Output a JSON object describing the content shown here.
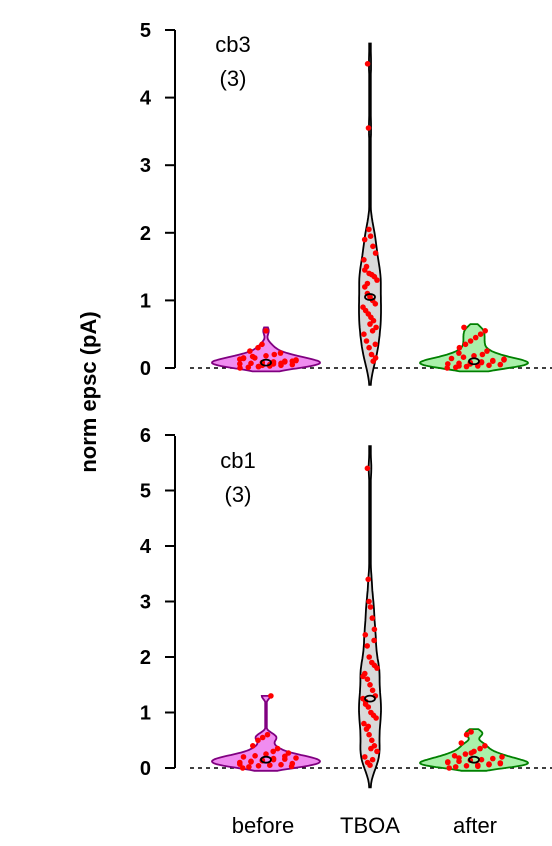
{
  "chart_data": {
    "ylabel": "norm epsc (pA)",
    "categories": [
      "before",
      "TBOA",
      "after"
    ],
    "colors": {
      "before": "#f08cf0",
      "TBOA": "#d9d9d9",
      "after": "#aaf0aa",
      "before_edge": "#800080",
      "TBOA_edge": "#000000",
      "after_edge": "#008000",
      "points": "#ff0000",
      "median_marker": "#000000"
    },
    "panels": [
      {
        "type": "violin",
        "annotation_line1": "cb3",
        "annotation_line2": "(3)",
        "ylim": [
          -0.25,
          5
        ],
        "yticks": [
          "0",
          "1",
          "2",
          "3",
          "4",
          "5"
        ],
        "zero_line": "dashed",
        "violins": [
          {
            "category": "before",
            "min": -0.05,
            "max": 0.6,
            "median": 0.08,
            "points": [
              0.0,
              0.01,
              0.02,
              0.03,
              0.04,
              0.05,
              0.06,
              0.07,
              0.08,
              0.09,
              0.1,
              0.12,
              0.14,
              0.15,
              0.18,
              0.2,
              0.22,
              0.25,
              0.3,
              0.02,
              0.05,
              0.07,
              0.1,
              0.13,
              0.17,
              0.04,
              0.06,
              0.09,
              0.11,
              0.15,
              0.35,
              0.55
            ]
          },
          {
            "category": "TBOA",
            "min": -0.25,
            "max": 4.8,
            "median": 1.05,
            "points": [
              4.5,
              3.55,
              2.05,
              1.95,
              1.8,
              1.7,
              1.6,
              1.5,
              1.4,
              1.38,
              1.35,
              1.3,
              1.2,
              1.1,
              1.05,
              1.0,
              0.95,
              0.9,
              0.85,
              0.8,
              0.75,
              0.7,
              0.6,
              0.5,
              0.4,
              0.3,
              0.2,
              0.1,
              0.15,
              1.45,
              1.25,
              0.65,
              0.55,
              0.35,
              1.9
            ]
          },
          {
            "category": "after",
            "min": -0.05,
            "max": 0.65,
            "median": 0.1,
            "points": [
              0.0,
              0.01,
              0.02,
              0.03,
              0.04,
              0.05,
              0.06,
              0.07,
              0.08,
              0.09,
              0.1,
              0.12,
              0.14,
              0.16,
              0.18,
              0.2,
              0.25,
              0.3,
              0.35,
              0.4,
              0.45,
              0.5,
              0.55,
              0.6,
              0.03,
              0.06,
              0.08,
              0.11,
              0.13,
              0.22
            ]
          }
        ]
      },
      {
        "type": "violin",
        "annotation_line1": "cb1",
        "annotation_line2": "(3)",
        "ylim": [
          -0.35,
          6
        ],
        "yticks": [
          "0",
          "1",
          "2",
          "3",
          "4",
          "5",
          "6"
        ],
        "zero_line": "dashed",
        "violins": [
          {
            "category": "before",
            "min": -0.05,
            "max": 1.3,
            "median": 0.15,
            "points": [
              0.0,
              0.02,
              0.04,
              0.05,
              0.06,
              0.08,
              0.1,
              0.12,
              0.14,
              0.15,
              0.16,
              0.18,
              0.2,
              0.22,
              0.25,
              0.3,
              0.35,
              0.4,
              0.5,
              0.55,
              0.6,
              1.3,
              0.03,
              0.07,
              0.11,
              0.13,
              0.17,
              0.21,
              0.27
            ]
          },
          {
            "category": "TBOA",
            "min": -0.35,
            "max": 5.8,
            "median": 1.25,
            "points": [
              5.4,
              3.4,
              3.0,
              2.9,
              2.7,
              2.5,
              2.4,
              2.2,
              2.0,
              1.9,
              1.85,
              1.8,
              1.7,
              1.6,
              1.5,
              1.4,
              1.3,
              1.25,
              1.2,
              1.1,
              1.0,
              0.95,
              0.9,
              0.8,
              0.7,
              0.6,
              0.5,
              0.4,
              0.3,
              0.2,
              0.1,
              0.05,
              0.15,
              2.3,
              1.65,
              1.15,
              0.75,
              0.35
            ]
          },
          {
            "category": "after",
            "min": -0.05,
            "max": 0.7,
            "median": 0.15,
            "points": [
              0.0,
              0.02,
              0.04,
              0.05,
              0.07,
              0.08,
              0.1,
              0.12,
              0.14,
              0.15,
              0.17,
              0.2,
              0.22,
              0.25,
              0.3,
              0.35,
              0.4,
              0.45,
              0.6,
              0.65,
              0.03,
              0.06,
              0.09,
              0.11,
              0.18,
              0.27
            ]
          }
        ]
      }
    ]
  }
}
